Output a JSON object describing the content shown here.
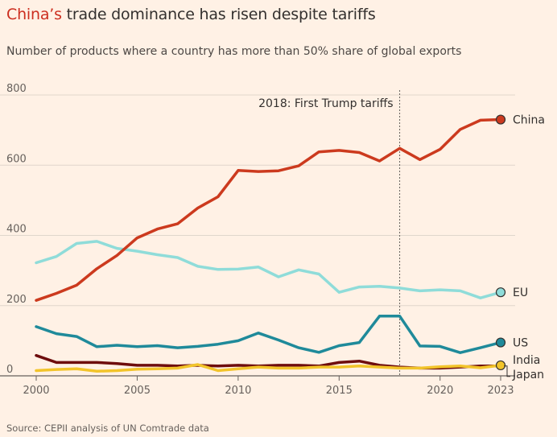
{
  "header": {
    "title_highlight": "China’s",
    "title_rest": " trade dominance has risen despite tariffs",
    "subtitle": "Number of products where a country has more than 50% share of global exports"
  },
  "footer": {
    "source": "Source: CEPII analysis of UN Comtrade data"
  },
  "chart_data": {
    "type": "line",
    "title": "China’s trade dominance has risen despite tariffs",
    "subtitle": "Number of products where a country has more than 50% share of global exports",
    "x": [
      2000,
      2001,
      2002,
      2003,
      2004,
      2005,
      2006,
      2007,
      2008,
      2009,
      2010,
      2011,
      2012,
      2013,
      2014,
      2015,
      2016,
      2017,
      2018,
      2019,
      2020,
      2021,
      2022,
      2023
    ],
    "xticks": [
      2000,
      2005,
      2010,
      2015,
      2020,
      2023
    ],
    "xtick_labels": [
      "2000",
      "2005",
      "2010",
      "2015",
      "2020",
      "2023"
    ],
    "xlim": [
      2000,
      2023
    ],
    "ylim": [
      0,
      800
    ],
    "yticks": [
      0,
      200,
      400,
      600,
      800
    ],
    "ytick_labels": [
      "0",
      "200",
      "400",
      "600",
      "800"
    ],
    "grid": "horizontal",
    "series": [
      {
        "name": "China",
        "color": "#cc3a1e",
        "values": [
          215,
          235,
          258,
          305,
          343,
          393,
          418,
          433,
          478,
          510,
          585,
          582,
          584,
          598,
          638,
          642,
          636,
          612,
          648,
          616,
          645,
          702,
          728,
          730
        ]
      },
      {
        "name": "EU",
        "color": "#8fdcd9",
        "values": [
          322,
          340,
          377,
          383,
          363,
          355,
          345,
          337,
          312,
          303,
          304,
          310,
          282,
          302,
          290,
          238,
          253,
          255,
          250,
          242,
          245,
          242,
          222,
          238
        ]
      },
      {
        "name": "US",
        "color": "#1f8a9a",
        "values": [
          140,
          120,
          112,
          83,
          87,
          83,
          86,
          80,
          84,
          90,
          100,
          122,
          102,
          80,
          67,
          86,
          95,
          170,
          170,
          85,
          84,
          66,
          80,
          95
        ]
      },
      {
        "name": "India",
        "color": "#f2c42a",
        "values": [
          15,
          18,
          20,
          13,
          15,
          19,
          20,
          22,
          32,
          15,
          20,
          25,
          22,
          22,
          25,
          25,
          28,
          25,
          22,
          22,
          26,
          28,
          23,
          30
        ]
      },
      {
        "name": "Japan",
        "color": "#6e0d0d",
        "values": [
          58,
          38,
          38,
          38,
          35,
          30,
          30,
          28,
          30,
          28,
          30,
          28,
          30,
          30,
          28,
          38,
          42,
          30,
          25,
          22,
          22,
          25,
          28,
          28
        ]
      }
    ],
    "annotations": [
      {
        "x": 2018,
        "text": "2018: First Trump tariffs",
        "style": "dotted vertical line"
      }
    ]
  }
}
